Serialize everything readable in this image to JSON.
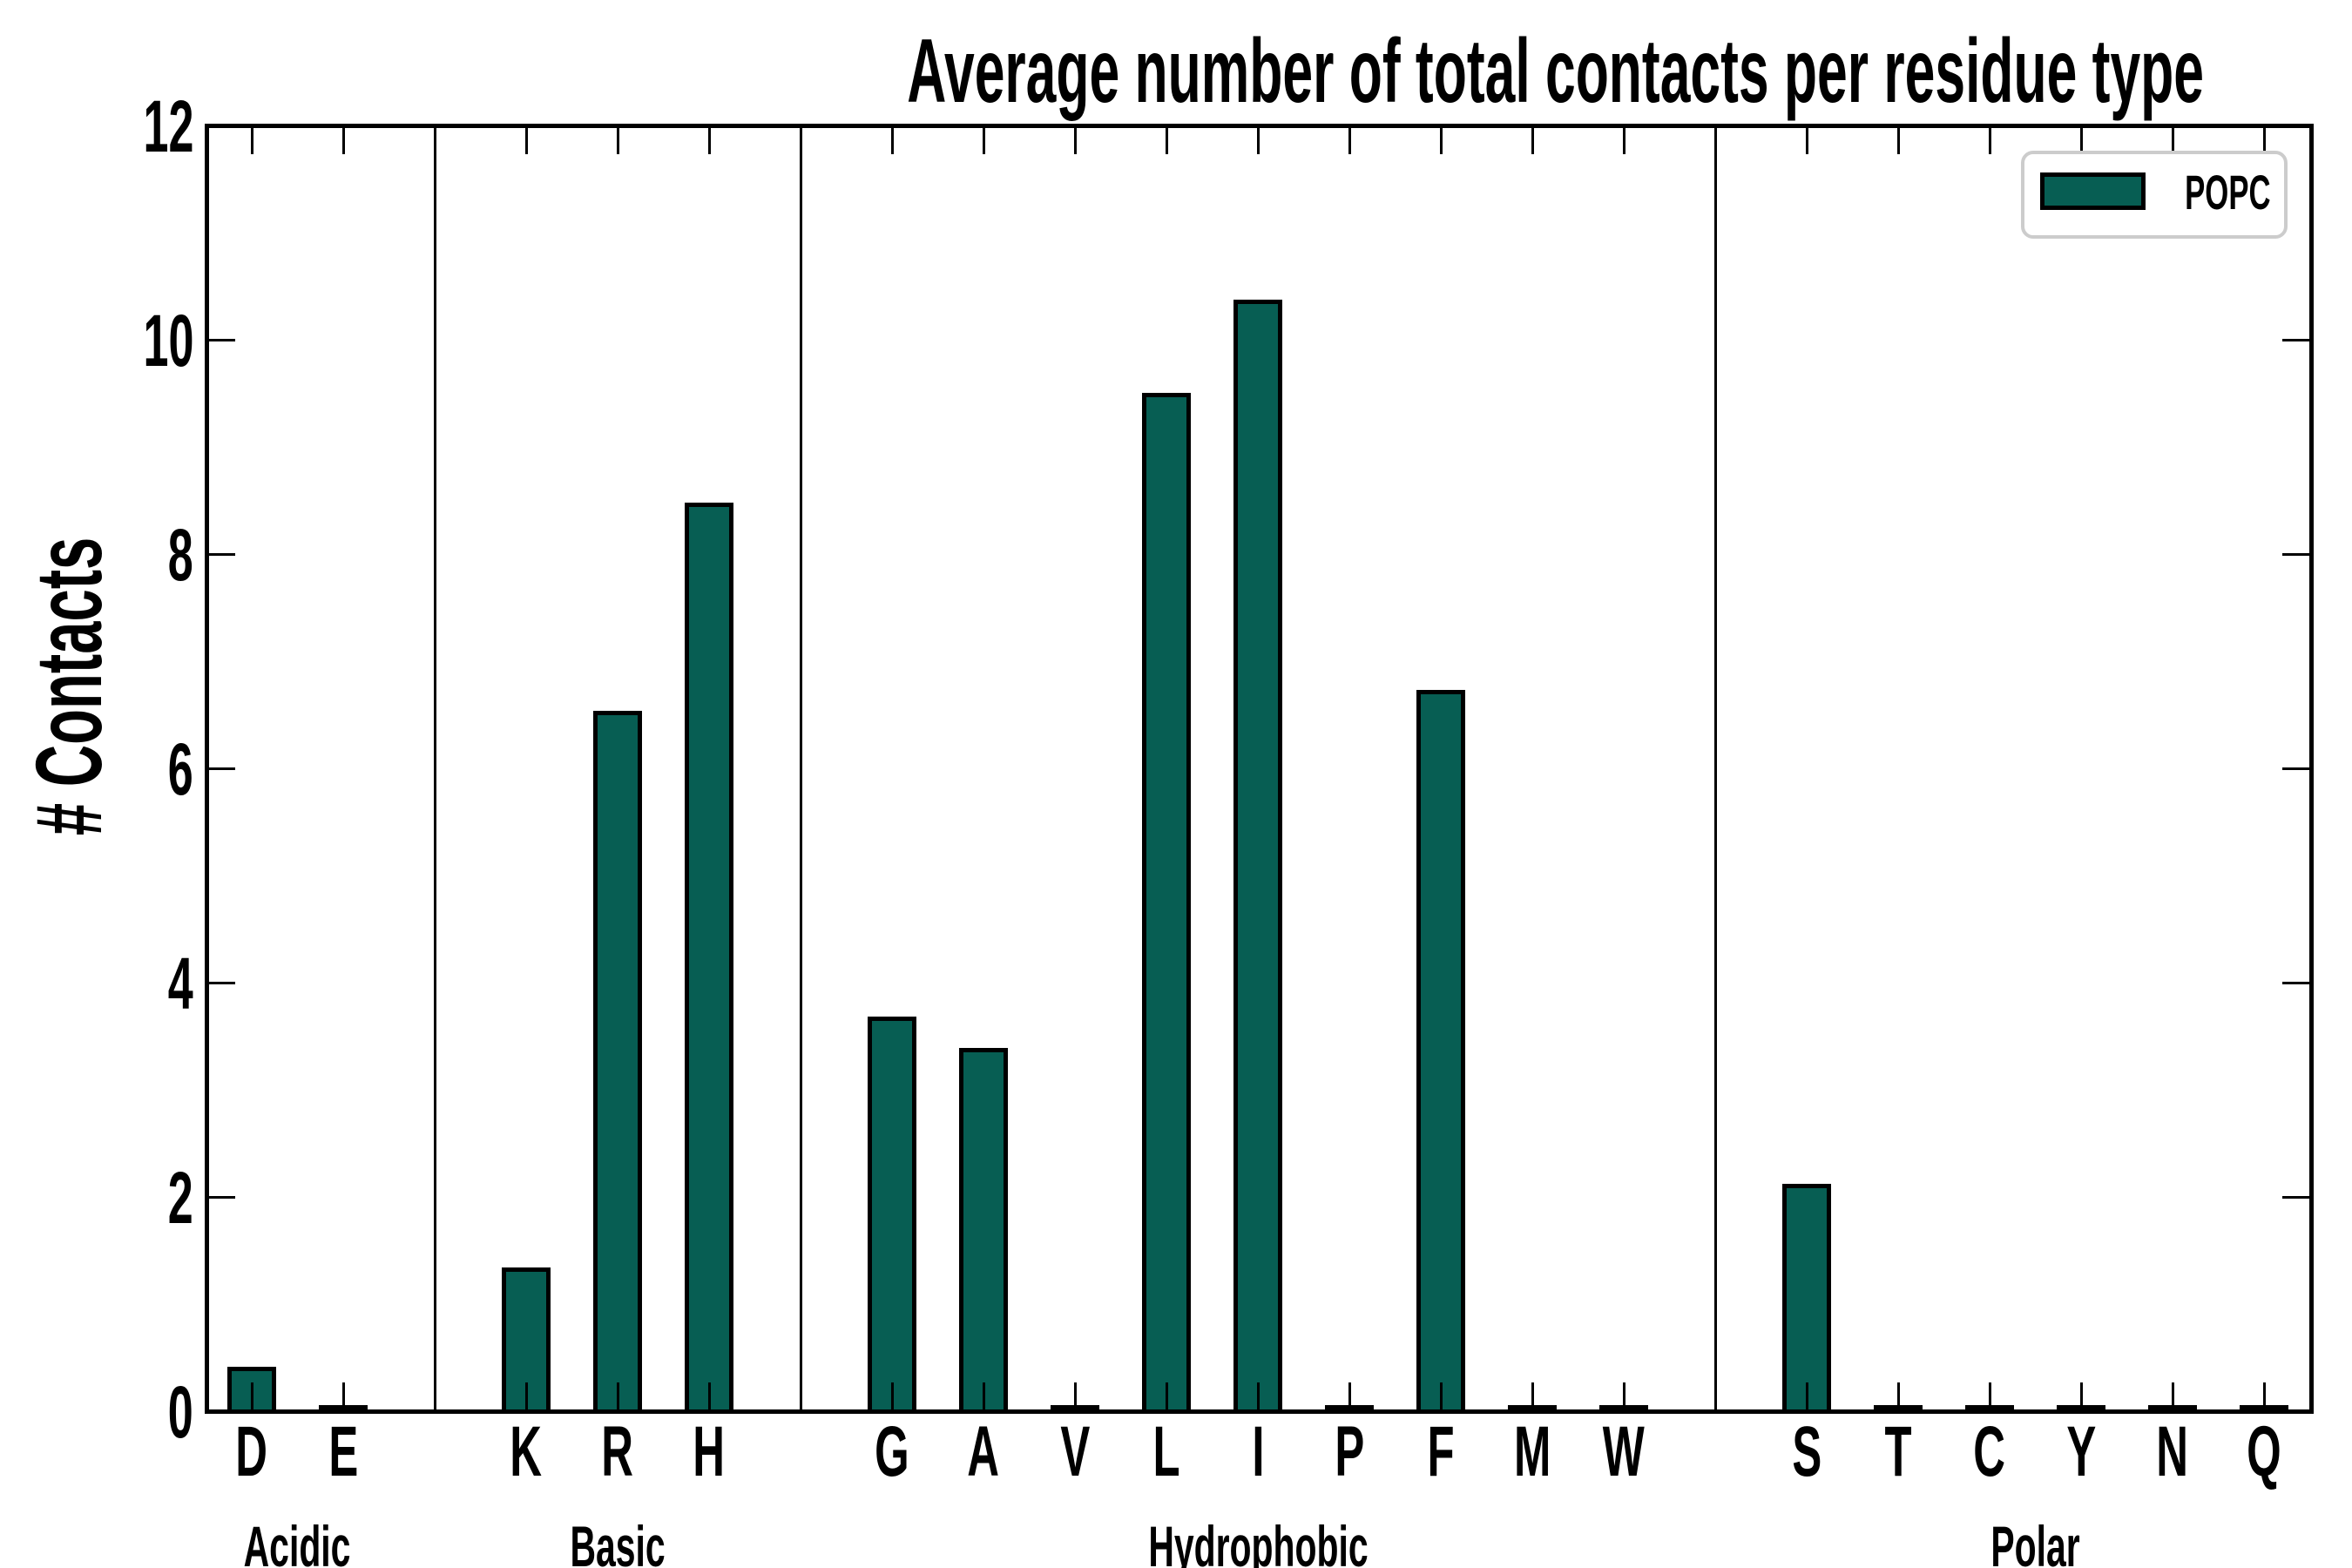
{
  "chart_data": {
    "type": "bar",
    "title": "Average number of total contacts per residue type",
    "ylabel": "# Contacts",
    "xlabel": "",
    "ylim": [
      0,
      12
    ],
    "yticks": [
      0,
      2,
      4,
      6,
      8,
      10,
      12
    ],
    "grid": false,
    "legend": {
      "label": "POPC",
      "position": "upper-right"
    },
    "colors": {
      "bar_fill": "#075E53",
      "bar_edge": "#000000",
      "axis": "#000000",
      "legend_border": "#CCCCCC",
      "background": "#FFFFFF"
    },
    "series": [
      {
        "name": "POPC"
      }
    ],
    "groups": [
      {
        "label": "Acidic",
        "categories": [
          "D",
          "E"
        ],
        "values": [
          0.37,
          0.02
        ]
      },
      {
        "label": "Basic",
        "categories": [
          "K",
          "R",
          "H"
        ],
        "values": [
          1.3,
          6.5,
          8.44
        ]
      },
      {
        "label": "Hydrophobic",
        "categories": [
          "G",
          "A",
          "V",
          "L",
          "I",
          "P",
          "F",
          "M",
          "W"
        ],
        "values": [
          3.64,
          3.35,
          0.02,
          9.46,
          10.33,
          0.02,
          6.69,
          0.02,
          0.02
        ]
      },
      {
        "label": "Polar",
        "categories": [
          "S",
          "T",
          "C",
          "Y",
          "N",
          "Q"
        ],
        "values": [
          2.08,
          0.02,
          0.02,
          0.02,
          0.02,
          0.02
        ]
      }
    ]
  }
}
